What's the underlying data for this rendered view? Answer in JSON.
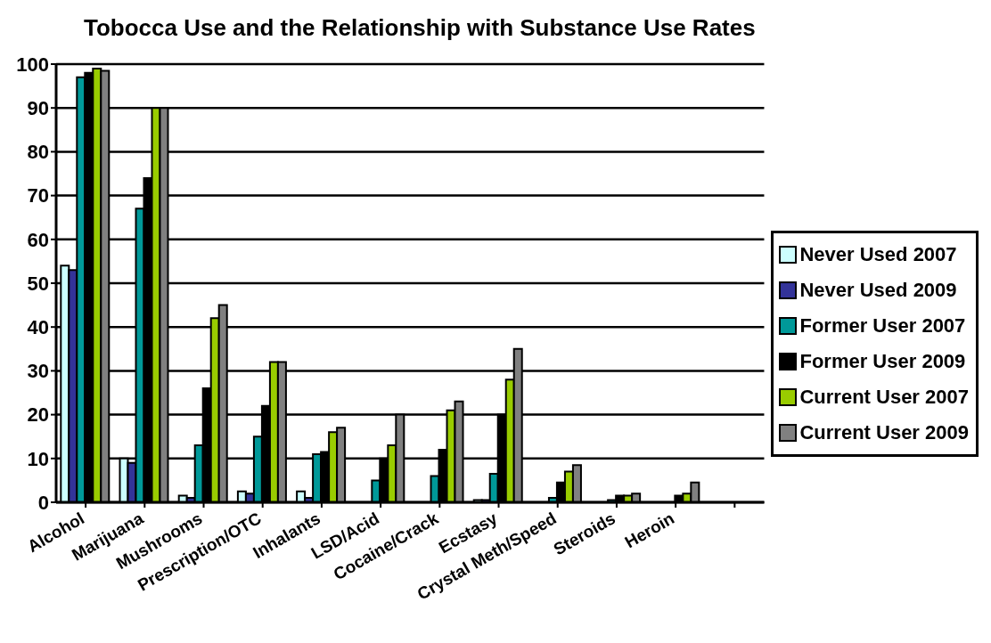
{
  "chart_data": {
    "type": "bar",
    "title": "Tobocca Use and the Relationship with Substance Use Rates",
    "categories": [
      "Alcohol",
      "Marijuana",
      "Mushrooms",
      "Prescription/OTC",
      "Inhalants",
      "LSD/Acid",
      "Cocaine/Crack",
      "Ecstasy",
      "Crystal Meth/Speed",
      "Steroids",
      "Heroin",
      null
    ],
    "series": [
      {
        "name": "Never Used 2007",
        "color": "#ccffff",
        "values": [
          54,
          10,
          1.5,
          2.5,
          2.5,
          0,
          null,
          0.5,
          0,
          null,
          0,
          null
        ]
      },
      {
        "name": "Never Used 2009",
        "color": "#333399",
        "values": [
          53,
          9,
          1,
          2,
          1,
          0,
          null,
          0.5,
          0,
          null,
          0,
          null
        ]
      },
      {
        "name": "Former User 2007",
        "color": "#009999",
        "values": [
          97,
          67,
          13,
          15,
          11,
          5,
          6,
          6.5,
          1,
          0.5,
          0,
          null
        ]
      },
      {
        "name": "Former User 2009",
        "color": "#000000",
        "values": [
          98,
          74,
          26,
          22,
          11.5,
          10,
          12,
          20,
          4.5,
          1.5,
          1.5,
          null
        ]
      },
      {
        "name": "Current User 2007",
        "color": "#99cc00",
        "values": [
          99,
          90,
          42,
          32,
          16,
          13,
          21,
          28,
          7,
          1.5,
          2,
          null
        ]
      },
      {
        "name": "Current User 2009",
        "color": "#808080",
        "values": [
          98.5,
          90,
          45,
          32,
          17,
          20,
          23,
          35,
          8.5,
          2,
          4.5,
          null
        ]
      }
    ],
    "ylim": [
      0,
      100
    ],
    "yticks": [
      0,
      10,
      20,
      30,
      40,
      50,
      60,
      70,
      80,
      90,
      100
    ],
    "grid": "y",
    "legend": "right"
  }
}
